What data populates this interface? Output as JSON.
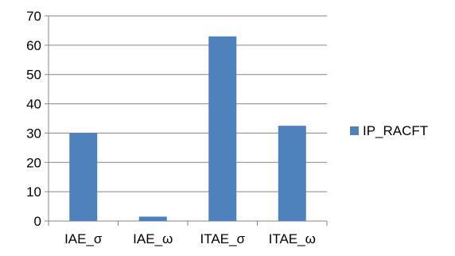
{
  "chart_data": {
    "type": "bar",
    "categories": [
      "IAE_σ",
      "IAE_ω",
      "ITAE_σ",
      "ITAE_ω"
    ],
    "series": [
      {
        "name": "IP_RACFT",
        "values": [
          30,
          1.5,
          63,
          32.5
        ],
        "color": "#4f81bd"
      }
    ],
    "ylim": [
      0,
      70
    ],
    "yticks": [
      0,
      10,
      20,
      30,
      40,
      50,
      60,
      70
    ],
    "grid": true,
    "legend": "right"
  }
}
